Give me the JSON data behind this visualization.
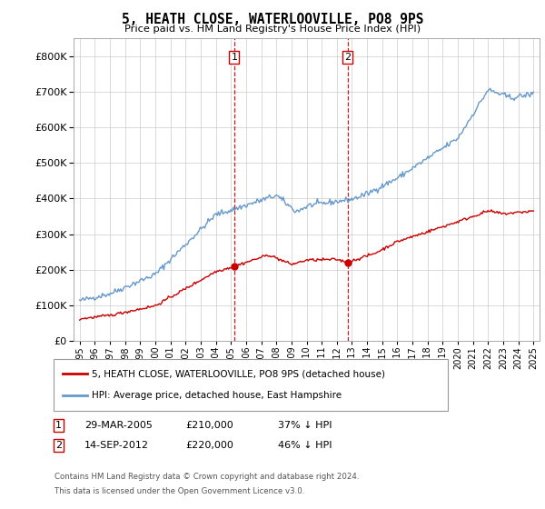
{
  "title": "5, HEATH CLOSE, WATERLOOVILLE, PO8 9PS",
  "subtitle": "Price paid vs. HM Land Registry's House Price Index (HPI)",
  "legend_line1": "5, HEATH CLOSE, WATERLOOVILLE, PO8 9PS (detached house)",
  "legend_line2": "HPI: Average price, detached house, East Hampshire",
  "footer1": "Contains HM Land Registry data © Crown copyright and database right 2024.",
  "footer2": "This data is licensed under the Open Government Licence v3.0.",
  "t1_label": "1",
  "t1_date": "29-MAR-2005",
  "t1_price": "£210,000",
  "t1_pct": "37% ↓ HPI",
  "t1_x": 2005.22,
  "t1_y": 210000,
  "t2_label": "2",
  "t2_date": "14-SEP-2012",
  "t2_price": "£220,000",
  "t2_pct": "46% ↓ HPI",
  "t2_x": 2012.72,
  "t2_y": 220000,
  "red_color": "#cc0000",
  "blue_color": "#6699cc",
  "ylim": [
    0,
    850000
  ],
  "xlim_start": 1994.6,
  "xlim_end": 2025.4,
  "grid_color": "#cccccc",
  "yticks": [
    0,
    100000,
    200000,
    300000,
    400000,
    500000,
    600000,
    700000,
    800000
  ],
  "xtick_years": [
    1995,
    1996,
    1997,
    1998,
    1999,
    2000,
    2001,
    2002,
    2003,
    2004,
    2005,
    2006,
    2007,
    2008,
    2009,
    2010,
    2011,
    2012,
    2013,
    2014,
    2015,
    2016,
    2017,
    2018,
    2019,
    2020,
    2021,
    2022,
    2023,
    2024,
    2025
  ]
}
